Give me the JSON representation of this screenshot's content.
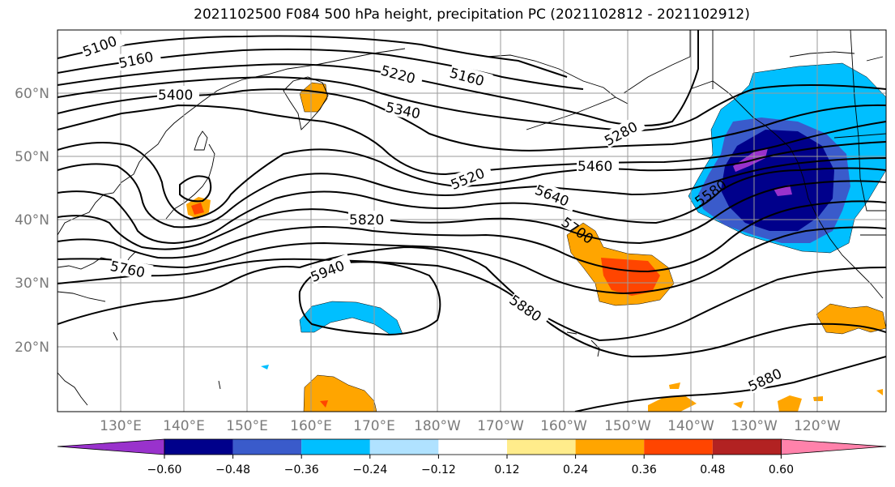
{
  "title": "2021102500 F084 500 hPa height, precipitation PC (2021102812 - 2021102912)",
  "map": {
    "lat_labels": [
      "60°N",
      "50°N",
      "40°N",
      "30°N",
      "20°N"
    ],
    "lon_labels": [
      "130°E",
      "140°E",
      "150°E",
      "160°E",
      "170°E",
      "180°W",
      "170°W",
      "160°W",
      "150°W",
      "140°W",
      "130°W",
      "120°W"
    ],
    "contour_labels": [
      {
        "id": "c5100",
        "text": "5100"
      },
      {
        "id": "c5160a",
        "text": "5160"
      },
      {
        "id": "c5220",
        "text": "5220"
      },
      {
        "id": "c5160b",
        "text": "5160"
      },
      {
        "id": "c5400",
        "text": "5400"
      },
      {
        "id": "c5340",
        "text": "5340"
      },
      {
        "id": "c5280",
        "text": "5280"
      },
      {
        "id": "c5460",
        "text": "5460"
      },
      {
        "id": "c5520",
        "text": "5520"
      },
      {
        "id": "c5640",
        "text": "5640"
      },
      {
        "id": "c5580",
        "text": "5580"
      },
      {
        "id": "c5820",
        "text": "5820"
      },
      {
        "id": "c5700",
        "text": "5700"
      },
      {
        "id": "c5760",
        "text": "5760"
      },
      {
        "id": "c5940",
        "text": "5940"
      },
      {
        "id": "c5880a",
        "text": "5880"
      },
      {
        "id": "c5880b",
        "text": "5880"
      }
    ]
  },
  "colorbar": {
    "colors": [
      "#9932cc",
      "#00008b",
      "#3a5bcb",
      "#00bfff",
      "#b0e2ff",
      "#ffffff",
      "#ffec8b",
      "#ffa500",
      "#ff4500",
      "#b22222",
      "#ff82ab"
    ],
    "tick_labels": [
      "−0.60",
      "−0.48",
      "−0.36",
      "−0.24",
      "−0.12",
      "0.12",
      "0.24",
      "0.36",
      "0.48",
      "0.60"
    ]
  }
}
